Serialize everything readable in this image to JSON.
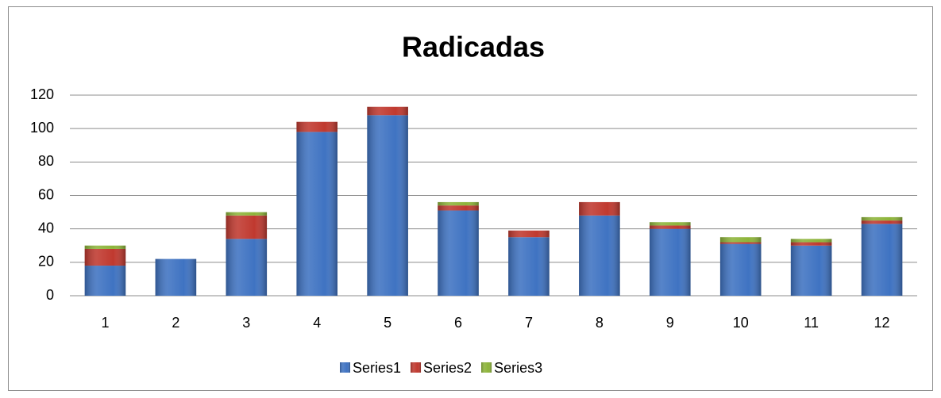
{
  "chart_data": {
    "type": "stacked_bar",
    "title": "Radicadas",
    "categories": [
      "1",
      "2",
      "3",
      "4",
      "5",
      "6",
      "7",
      "8",
      "9",
      "10",
      "11",
      "12"
    ],
    "series": [
      {
        "name": "Series1",
        "color": "#3f73c2",
        "values": [
          18,
          22,
          34,
          98,
          108,
          51,
          35,
          48,
          40,
          31,
          30,
          43
        ]
      },
      {
        "name": "Series2",
        "color": "#c0392f",
        "values": [
          10,
          0,
          14,
          6,
          5,
          3,
          4,
          8,
          2,
          1,
          2,
          2
        ]
      },
      {
        "name": "Series3",
        "color": "#8db43a",
        "values": [
          2,
          0,
          2,
          0,
          0,
          2,
          0,
          0,
          2,
          3,
          2,
          2
        ]
      }
    ],
    "ylim": [
      0,
      120
    ],
    "yticks": [
      0,
      20,
      40,
      60,
      80,
      100,
      120
    ],
    "grid": true,
    "legend": "bottom"
  }
}
